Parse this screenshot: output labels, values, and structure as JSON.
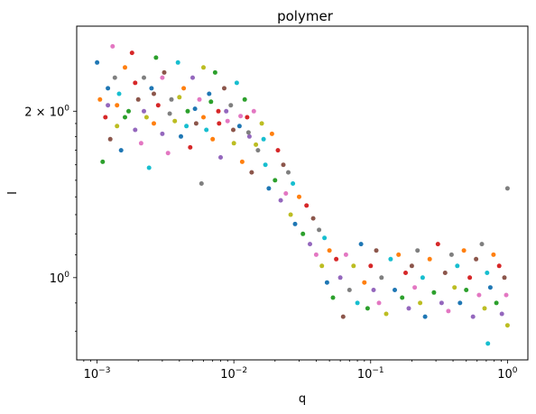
{
  "chart_data": {
    "type": "scatter",
    "title": "polymer",
    "xlabel": "q",
    "ylabel": "I",
    "xscale": "log",
    "yscale": "log",
    "xlim": [
      0.00071,
      1.41
    ],
    "ylim": [
      0.71,
      2.85
    ],
    "grid": false,
    "legend": "none",
    "x_major_ticks": [
      {
        "value": 0.001,
        "base": "10",
        "exp": "−3"
      },
      {
        "value": 0.01,
        "base": "10",
        "exp": "−2"
      },
      {
        "value": 0.1,
        "base": "10",
        "exp": "−1"
      },
      {
        "value": 1,
        "base": "10",
        "exp": "0"
      }
    ],
    "y_major_ticks": [
      {
        "value": 1,
        "base": "10",
        "exp": "0"
      },
      {
        "value": 2,
        "base": "2 × 10",
        "exp": "0"
      }
    ],
    "y_minor_ticks": [
      0.8,
      0.9,
      1.1,
      1.2,
      1.3,
      1.4,
      1.5,
      1.6,
      1.7,
      1.8,
      1.9
    ],
    "marker_size": 2.5,
    "colors": [
      "#1f77b4",
      "#ff7f0e",
      "#2ca02c",
      "#d62728",
      "#9467bd",
      "#8c564b",
      "#e377c2",
      "#7f7f7f",
      "#bcbd22",
      "#17becf"
    ],
    "points": [
      [
        0.001,
        2.45
      ],
      [
        0.00105,
        2.1
      ],
      [
        0.0011,
        1.62
      ],
      [
        0.00115,
        1.95
      ],
      [
        0.0012,
        2.05
      ],
      [
        0.00125,
        1.78
      ],
      [
        0.0013,
        2.62
      ],
      [
        0.00135,
        2.3
      ],
      [
        0.0014,
        1.88
      ],
      [
        0.00145,
        2.15
      ],
      [
        0.0015,
        1.7
      ],
      [
        0.0016,
        2.4
      ],
      [
        0.0017,
        2.0
      ],
      [
        0.0018,
        2.55
      ],
      [
        0.0019,
        1.85
      ],
      [
        0.002,
        2.1
      ],
      [
        0.0021,
        1.75
      ],
      [
        0.0022,
        2.3
      ],
      [
        0.0023,
        1.95
      ],
      [
        0.0024,
        1.58
      ],
      [
        0.0025,
        2.2
      ],
      [
        0.0026,
        1.9
      ],
      [
        0.0027,
        2.5
      ],
      [
        0.0028,
        2.05
      ],
      [
        0.003,
        1.82
      ],
      [
        0.0031,
        2.35
      ],
      [
        0.0033,
        1.68
      ],
      [
        0.0035,
        2.1
      ],
      [
        0.0037,
        1.92
      ],
      [
        0.0039,
        2.45
      ],
      [
        0.0041,
        1.8
      ],
      [
        0.0043,
        2.2
      ],
      [
        0.0046,
        2.0
      ],
      [
        0.0048,
        1.72
      ],
      [
        0.005,
        2.3
      ],
      [
        0.0053,
        1.9
      ],
      [
        0.0056,
        2.1
      ],
      [
        0.0058,
        1.48
      ],
      [
        0.006,
        2.4
      ],
      [
        0.0063,
        1.85
      ],
      [
        0.0066,
        2.15
      ],
      [
        0.007,
        1.78
      ],
      [
        0.0073,
        2.35
      ],
      [
        0.0077,
        2.0
      ],
      [
        0.008,
        1.65
      ],
      [
        0.0085,
        2.2
      ],
      [
        0.009,
        1.92
      ],
      [
        0.0095,
        2.05
      ],
      [
        0.01,
        1.75
      ],
      [
        0.0105,
        2.25
      ],
      [
        0.011,
        1.88
      ],
      [
        0.0115,
        1.62
      ],
      [
        0.012,
        2.1
      ],
      [
        0.0125,
        1.95
      ],
      [
        0.013,
        1.8
      ],
      [
        0.0135,
        1.55
      ],
      [
        0.014,
        2.0
      ],
      [
        0.015,
        1.7
      ],
      [
        0.016,
        1.9
      ],
      [
        0.017,
        1.6
      ],
      [
        0.018,
        1.45
      ],
      [
        0.019,
        1.82
      ],
      [
        0.02,
        1.5
      ],
      [
        0.021,
        1.7
      ],
      [
        0.022,
        1.38
      ],
      [
        0.023,
        1.6
      ],
      [
        0.024,
        1.42
      ],
      [
        0.025,
        1.55
      ],
      [
        0.026,
        1.3
      ],
      [
        0.027,
        1.48
      ],
      [
        0.028,
        1.25
      ],
      [
        0.03,
        1.4
      ],
      [
        0.032,
        1.2
      ],
      [
        0.034,
        1.35
      ],
      [
        0.036,
        1.15
      ],
      [
        0.038,
        1.28
      ],
      [
        0.04,
        1.1
      ],
      [
        0.042,
        1.22
      ],
      [
        0.044,
        1.05
      ],
      [
        0.046,
        1.18
      ],
      [
        0.048,
        0.98
      ],
      [
        0.05,
        1.12
      ],
      [
        0.053,
        0.92
      ],
      [
        0.056,
        1.08
      ],
      [
        0.06,
        1.0
      ],
      [
        0.063,
        0.85
      ],
      [
        0.066,
        1.1
      ],
      [
        0.07,
        0.95
      ],
      [
        0.075,
        1.05
      ],
      [
        0.08,
        0.9
      ],
      [
        0.085,
        1.15
      ],
      [
        0.09,
        0.98
      ],
      [
        0.095,
        0.88
      ],
      [
        0.1,
        1.05
      ],
      [
        0.105,
        0.95
      ],
      [
        0.11,
        1.12
      ],
      [
        0.115,
        0.9
      ],
      [
        0.12,
        1.0
      ],
      [
        0.13,
        0.86
      ],
      [
        0.14,
        1.08
      ],
      [
        0.15,
        0.95
      ],
      [
        0.16,
        1.1
      ],
      [
        0.17,
        0.92
      ],
      [
        0.18,
        1.02
      ],
      [
        0.19,
        0.88
      ],
      [
        0.2,
        1.05
      ],
      [
        0.21,
        0.96
      ],
      [
        0.22,
        1.12
      ],
      [
        0.23,
        0.9
      ],
      [
        0.24,
        1.0
      ],
      [
        0.25,
        0.85
      ],
      [
        0.27,
        1.08
      ],
      [
        0.29,
        0.94
      ],
      [
        0.31,
        1.15
      ],
      [
        0.33,
        0.9
      ],
      [
        0.35,
        1.02
      ],
      [
        0.37,
        0.87
      ],
      [
        0.39,
        1.1
      ],
      [
        0.41,
        0.96
      ],
      [
        0.43,
        1.05
      ],
      [
        0.45,
        0.9
      ],
      [
        0.48,
        1.12
      ],
      [
        0.5,
        0.95
      ],
      [
        0.53,
        1.0
      ],
      [
        0.56,
        0.85
      ],
      [
        0.59,
        1.08
      ],
      [
        0.62,
        0.93
      ],
      [
        0.65,
        1.15
      ],
      [
        0.68,
        0.88
      ],
      [
        0.71,
        1.02
      ],
      [
        0.75,
        0.96
      ],
      [
        0.79,
        1.1
      ],
      [
        0.83,
        0.9
      ],
      [
        0.87,
        1.05
      ],
      [
        0.91,
        0.86
      ],
      [
        0.95,
        1.0
      ],
      [
        0.98,
        0.93
      ],
      [
        1.0,
        1.45
      ],
      [
        1.0,
        0.82
      ],
      [
        0.72,
        0.76
      ],
      [
        0.0012,
        2.2
      ],
      [
        0.0014,
        2.05
      ],
      [
        0.0016,
        1.95
      ],
      [
        0.0019,
        2.25
      ],
      [
        0.0022,
        2.0
      ],
      [
        0.0026,
        2.15
      ],
      [
        0.003,
        2.3
      ],
      [
        0.0034,
        1.98
      ],
      [
        0.004,
        2.12
      ],
      [
        0.0045,
        1.88
      ],
      [
        0.0052,
        2.02
      ],
      [
        0.006,
        1.95
      ],
      [
        0.0068,
        2.08
      ],
      [
        0.0078,
        1.9
      ],
      [
        0.0088,
        2.0
      ],
      [
        0.0099,
        1.85
      ],
      [
        0.0112,
        1.96
      ],
      [
        0.0128,
        1.83
      ],
      [
        0.0145,
        1.74
      ],
      [
        0.0165,
        1.78
      ]
    ]
  }
}
